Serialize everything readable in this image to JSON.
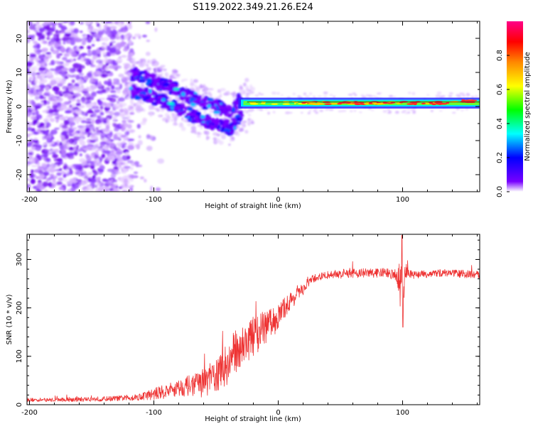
{
  "title": "S119.2022.349.21.26.E24",
  "colors": {
    "trace": "#ee3333",
    "axis": "#000000",
    "background": "#ffffff"
  },
  "chart_data": [
    {
      "type": "heatmap",
      "name": "spectrogram",
      "xlabel": "Height of straight line (km)",
      "ylabel": "Frequency (Hz)",
      "xlim": [
        -202,
        162
      ],
      "ylim": [
        -25,
        25
      ],
      "xticks": [
        -200,
        -100,
        0,
        100
      ],
      "yticks": [
        -20,
        -10,
        0,
        10,
        20
      ],
      "grid": false,
      "description_of_content": "Noisy violet scatter for heights below -115 km; descending feature from about +10 Hz at -115 km to about -5 Hz at -35 km; narrow high-amplitude band near +1 Hz from -30 km to 160 km.",
      "ridge": {
        "x": [
          -115,
          -100,
          -85,
          -70,
          -55,
          -45,
          -38,
          -32,
          -25,
          -15,
          0,
          20,
          50,
          80,
          100,
          110,
          130,
          150,
          160
        ],
        "y": [
          7,
          5,
          3,
          0,
          -2,
          -3,
          -4,
          -1,
          0,
          1,
          1,
          1,
          1,
          1,
          1,
          0.5,
          1,
          1.5,
          1.5
        ]
      },
      "colorbar": {
        "label": "Normalized spectral amplitude",
        "range": [
          0,
          1
        ],
        "ticks": [
          0.0,
          0.2,
          0.4,
          0.6,
          0.8
        ],
        "tick_labels": [
          "0.0",
          "0.2",
          "0.4",
          "0.6",
          "0.8"
        ],
        "colormap": [
          "#ffffff",
          "#7700ff",
          "#0000ff",
          "#00ffff",
          "#00ff00",
          "#ffff00",
          "#ff8800",
          "#ff0000",
          "#ff0088"
        ]
      }
    },
    {
      "type": "line",
      "name": "snr",
      "xlabel": "Height of straight line (km)",
      "ylabel": "SNR (10 * v/v)",
      "xlim": [
        -202,
        162
      ],
      "ylim": [
        0,
        352
      ],
      "xticks": [
        -200,
        -100,
        0,
        100
      ],
      "yticks": [
        0,
        100,
        200,
        300
      ],
      "grid": false,
      "series": [
        {
          "name": "SNR",
          "x": [
            -202,
            -180,
            -160,
            -140,
            -120,
            -110,
            -100,
            -90,
            -80,
            -70,
            -60,
            -50,
            -45,
            -40,
            -35,
            -30,
            -25,
            -20,
            -15,
            -10,
            -5,
            0,
            5,
            10,
            15,
            20,
            25,
            30,
            40,
            50,
            60,
            70,
            80,
            90,
            95,
            99,
            100,
            101,
            103,
            105,
            110,
            120,
            130,
            140,
            150,
            162
          ],
          "y": [
            10,
            10,
            11,
            12,
            14,
            17,
            22,
            28,
            35,
            40,
            45,
            60,
            70,
            85,
            110,
            120,
            130,
            140,
            150,
            160,
            170,
            180,
            200,
            215,
            225,
            238,
            255,
            262,
            268,
            270,
            272,
            272,
            272,
            272,
            260,
            250,
            200,
            250,
            275,
            270,
            268,
            270,
            272,
            272,
            270,
            268
          ],
          "noise_amplitude": [
            4,
            4,
            5,
            5,
            6,
            8,
            12,
            15,
            18,
            22,
            30,
            35,
            40,
            45,
            45,
            45,
            42,
            40,
            38,
            35,
            30,
            28,
            22,
            18,
            15,
            12,
            10,
            8,
            8,
            10,
            10,
            10,
            10,
            10,
            15,
            60,
            60,
            60,
            20,
            8,
            8,
            8,
            8,
            8,
            8,
            8
          ],
          "color": "#ee3333"
        }
      ]
    }
  ]
}
